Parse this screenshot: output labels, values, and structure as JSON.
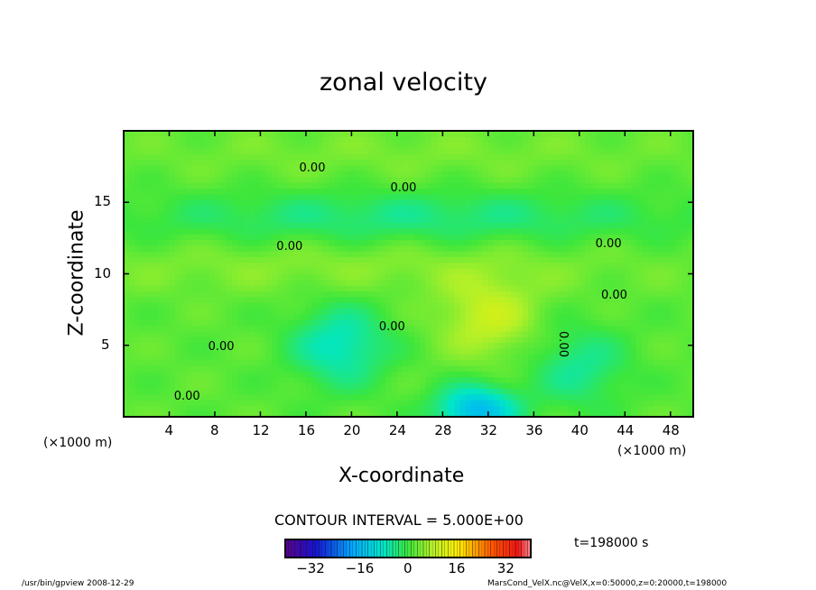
{
  "chart_data": {
    "type": "heatmap",
    "title": "zonal velocity",
    "xlabel": "X-coordinate",
    "ylabel": "Z-coordinate",
    "x_unit": "(×1000 m)",
    "y_unit": "(×1000 m)",
    "xlim": [
      0,
      50
    ],
    "ylim": [
      0,
      20
    ],
    "x_ticks": [
      4,
      8,
      12,
      16,
      20,
      24,
      28,
      32,
      36,
      40,
      44,
      48
    ],
    "y_ticks": [
      5,
      10,
      15
    ],
    "contour_interval_label": "CONTOUR INTERVAL = 5.000E+00",
    "contour_labels": [
      "0.00",
      "0.00",
      "0.00",
      "0.00",
      "0.00",
      "0.00",
      "0.00",
      "0.00",
      "0.00"
    ],
    "colorbar": {
      "range": [
        -40,
        40
      ],
      "ticks": [
        -32,
        -16,
        0,
        16,
        32
      ]
    },
    "features": [
      {
        "x": 32,
        "z": 7,
        "value": 10
      },
      {
        "x": 31,
        "z": 0.5,
        "value": -15
      },
      {
        "x": 19,
        "z": 5,
        "value": -8
      },
      {
        "x": 40,
        "z": 3.5,
        "value": -5
      },
      {
        "x": 25,
        "z": 14,
        "value": -4
      },
      {
        "x": 20,
        "z": 10.5,
        "value": 5
      },
      {
        "x": 25,
        "z": 18.5,
        "value": 4
      }
    ],
    "time_label": "t=198000 s"
  },
  "footer": {
    "program": "/usr/bin/gpview   2008-12-29",
    "source": "MarsCond_VelX.nc@VelX,x=0:50000,z=0:20000,t=198000"
  }
}
